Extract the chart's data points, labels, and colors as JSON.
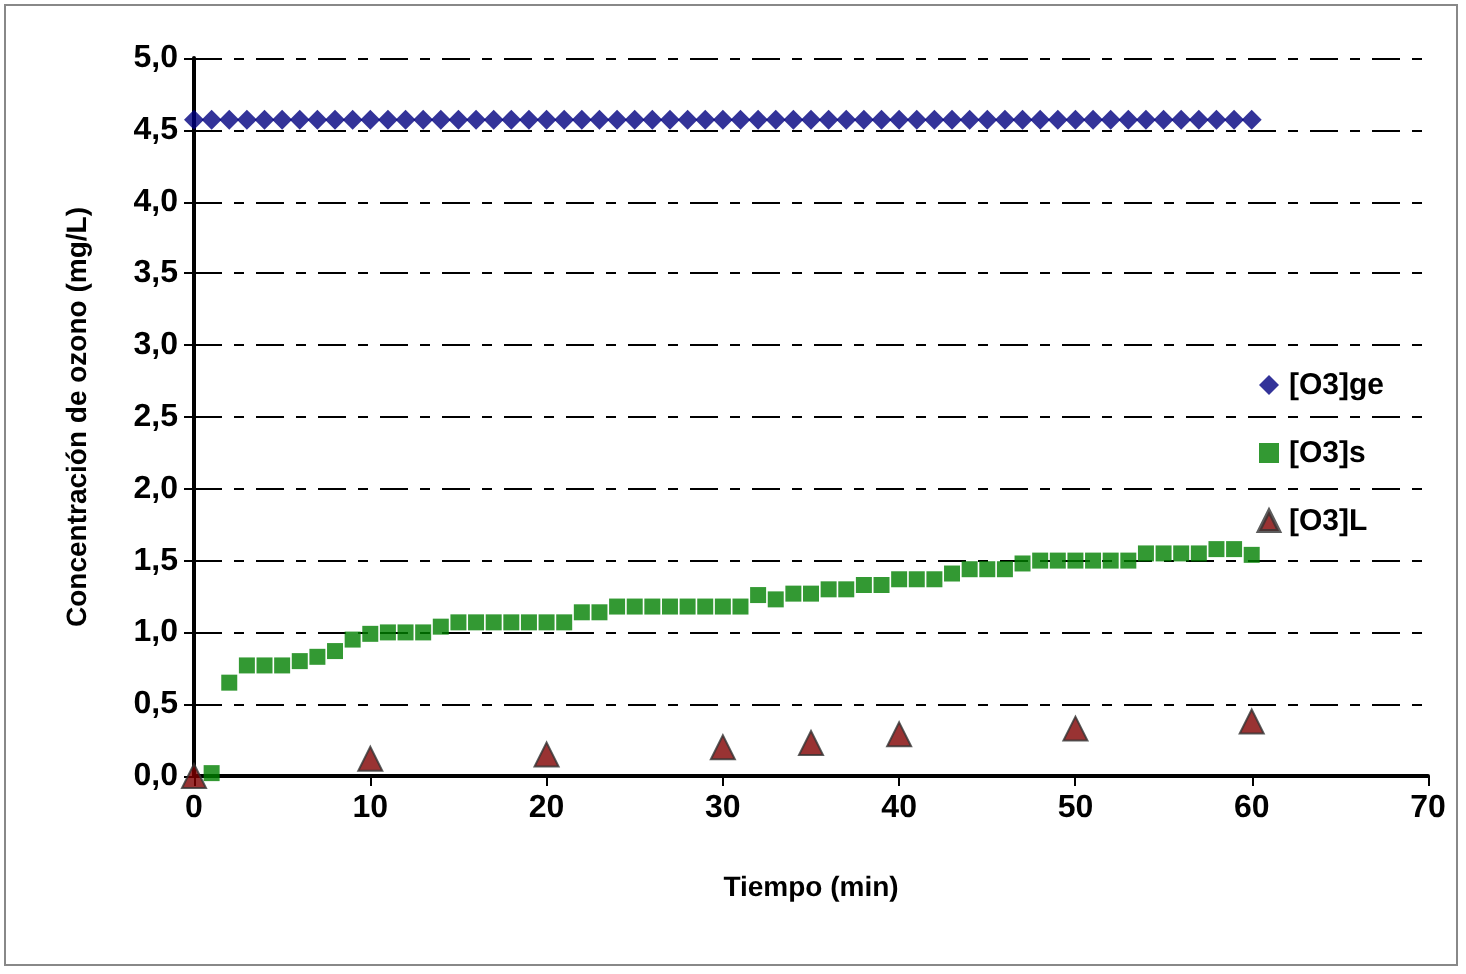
{
  "chart_data": {
    "type": "scatter",
    "xlabel": "Tiempo (min)",
    "ylabel": "Concentración de ozono (mg/L)",
    "xlim": [
      0,
      70
    ],
    "xticks": [
      0,
      10,
      20,
      30,
      40,
      50,
      60,
      70
    ],
    "ylim": [
      0,
      5
    ],
    "yticks": [
      {
        "value": 0,
        "label": "0,0"
      },
      {
        "value": 0.5,
        "label": "0,5"
      },
      {
        "value": 1,
        "label": "1,0"
      },
      {
        "value": 1.5,
        "label": "1,5"
      },
      {
        "value": 2,
        "label": "2,0"
      },
      {
        "value": 2.5,
        "label": "2,5"
      },
      {
        "value": 3,
        "label": "3,0"
      },
      {
        "value": 3.5,
        "label": "3,5"
      },
      {
        "value": 4,
        "label": "4,0"
      },
      {
        "value": 4.5,
        "label": "4,5"
      },
      {
        "value": 5,
        "label": "5,0"
      }
    ],
    "grid": "y",
    "legend": "right",
    "series": [
      {
        "name": "[O3]ge",
        "color": "#000080",
        "marker": "diamond",
        "x": [
          0,
          1,
          2,
          3,
          4,
          5,
          6,
          7,
          8,
          9,
          10,
          11,
          12,
          13,
          14,
          15,
          16,
          17,
          18,
          19,
          20,
          21,
          22,
          23,
          24,
          25,
          26,
          27,
          28,
          29,
          30,
          31,
          32,
          33,
          34,
          35,
          36,
          37,
          38,
          39,
          40,
          41,
          42,
          43,
          44,
          45,
          46,
          47,
          48,
          49,
          50,
          51,
          52,
          53,
          54,
          55,
          56,
          57,
          58,
          59,
          60
        ],
        "values": [
          4.57,
          4.57,
          4.57,
          4.57,
          4.57,
          4.57,
          4.57,
          4.57,
          4.57,
          4.57,
          4.57,
          4.57,
          4.57,
          4.57,
          4.57,
          4.57,
          4.57,
          4.57,
          4.57,
          4.57,
          4.57,
          4.57,
          4.57,
          4.57,
          4.57,
          4.57,
          4.57,
          4.57,
          4.57,
          4.57,
          4.57,
          4.57,
          4.57,
          4.57,
          4.57,
          4.57,
          4.57,
          4.57,
          4.57,
          4.57,
          4.57,
          4.57,
          4.57,
          4.57,
          4.57,
          4.57,
          4.57,
          4.57,
          4.57,
          4.57,
          4.57,
          4.57,
          4.57,
          4.57,
          4.57,
          4.57,
          4.57,
          4.57,
          4.57,
          4.57,
          4.57
        ]
      },
      {
        "name": "[O3]s",
        "color": "#008000",
        "marker": "square",
        "x": [
          1,
          2,
          3,
          4,
          5,
          6,
          7,
          8,
          9,
          10,
          11,
          12,
          13,
          14,
          15,
          16,
          17,
          18,
          19,
          20,
          21,
          22,
          23,
          24,
          25,
          26,
          27,
          28,
          29,
          30,
          31,
          32,
          33,
          34,
          35,
          36,
          37,
          38,
          39,
          40,
          41,
          42,
          43,
          44,
          45,
          46,
          47,
          48,
          49,
          50,
          51,
          52,
          53,
          54,
          55,
          56,
          57,
          58,
          59,
          60
        ],
        "values": [
          0.02,
          0.65,
          0.77,
          0.77,
          0.77,
          0.8,
          0.83,
          0.87,
          0.95,
          0.99,
          1.0,
          1.0,
          1.0,
          1.04,
          1.07,
          1.07,
          1.07,
          1.07,
          1.07,
          1.07,
          1.07,
          1.14,
          1.14,
          1.18,
          1.18,
          1.18,
          1.18,
          1.18,
          1.18,
          1.18,
          1.18,
          1.26,
          1.23,
          1.27,
          1.27,
          1.3,
          1.3,
          1.33,
          1.33,
          1.37,
          1.37,
          1.37,
          1.41,
          1.44,
          1.44,
          1.44,
          1.48,
          1.5,
          1.5,
          1.5,
          1.5,
          1.5,
          1.5,
          1.55,
          1.55,
          1.55,
          1.55,
          1.58,
          1.58,
          1.54
        ]
      },
      {
        "name": "[O3]L",
        "color": "#800000",
        "marker": "triangle",
        "x": [
          0,
          10,
          20,
          30,
          35,
          40,
          50,
          60
        ],
        "values": [
          0,
          0.12,
          0.15,
          0.2,
          0.23,
          0.29,
          0.33,
          0.38
        ]
      }
    ]
  }
}
